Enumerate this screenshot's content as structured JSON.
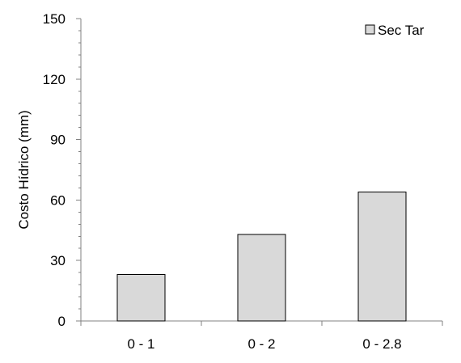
{
  "chart_data": {
    "type": "bar",
    "categories": [
      "0 - 1",
      "0 - 2",
      "0 - 2.8"
    ],
    "series": [
      {
        "name": "Sec Tar",
        "values": [
          23,
          43,
          64
        ]
      }
    ],
    "ylabel": "Costo Hídrico (mm)",
    "xlabel": "",
    "ylim": [
      0,
      150
    ],
    "yticks": [
      0,
      30,
      60,
      90,
      120,
      150
    ],
    "grid": false,
    "legend": "top-right",
    "colors": {
      "bar_fill": "#d9d9d9",
      "bar_stroke": "#000000",
      "axis": "#808080"
    }
  }
}
